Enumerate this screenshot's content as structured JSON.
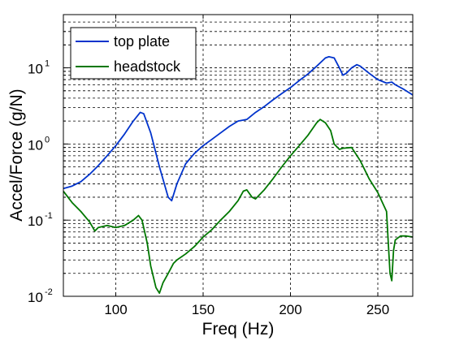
{
  "chart_data": {
    "type": "line",
    "title": "",
    "xlabel": "Freq (Hz)",
    "ylabel": "Accel/Force (g/N)",
    "xlim": [
      70,
      270
    ],
    "ylim": [
      0.01,
      50
    ],
    "yscale": "log",
    "grid": true,
    "legend_position": "top-left",
    "x_ticks": [
      100,
      150,
      200,
      250
    ],
    "x_tick_labels": [
      "100",
      "150",
      "200",
      "250"
    ],
    "y_ticks": [
      0.01,
      0.1,
      1,
      10
    ],
    "y_tick_labels": [
      {
        "base": "10",
        "exp": "-2"
      },
      {
        "base": "10",
        "exp": "-1"
      },
      {
        "base": "10",
        "exp": "0"
      },
      {
        "base": "10",
        "exp": "1"
      }
    ],
    "series": [
      {
        "name": "top plate",
        "color": "#0033cc",
        "x": [
          70,
          75,
          80,
          85,
          90,
          95,
          100,
          105,
          110,
          114,
          116,
          120,
          125,
          130,
          132,
          135,
          140,
          145,
          150,
          155,
          160,
          165,
          170,
          175,
          180,
          185,
          190,
          195,
          200,
          205,
          210,
          215,
          220,
          222,
          225,
          228,
          230,
          232,
          235,
          238,
          240,
          245,
          250,
          255,
          258,
          260,
          265,
          270
        ],
        "y": [
          0.26,
          0.28,
          0.32,
          0.4,
          0.52,
          0.7,
          0.95,
          1.35,
          2.0,
          2.6,
          2.5,
          1.4,
          0.5,
          0.2,
          0.18,
          0.3,
          0.55,
          0.75,
          0.95,
          1.15,
          1.4,
          1.7,
          2.0,
          2.1,
          2.6,
          3.1,
          3.8,
          4.6,
          5.5,
          6.8,
          8.3,
          10.5,
          13.5,
          14.0,
          13.5,
          10.0,
          8.0,
          8.5,
          10.0,
          11.0,
          10.5,
          8.5,
          7.0,
          6.3,
          6.5,
          6.0,
          5.2,
          4.4
        ]
      },
      {
        "name": "headstock",
        "color": "#007700",
        "x": [
          70,
          75,
          80,
          85,
          88,
          90,
          95,
          100,
          105,
          110,
          113,
          115,
          118,
          120,
          123,
          125,
          127,
          130,
          133,
          135,
          140,
          145,
          150,
          155,
          160,
          165,
          170,
          173,
          175,
          178,
          180,
          185,
          190,
          195,
          200,
          205,
          210,
          215,
          217,
          220,
          223,
          225,
          228,
          230,
          235,
          240,
          245,
          250,
          255,
          256,
          257,
          258,
          259,
          260,
          263,
          266,
          270
        ],
        "y": [
          0.24,
          0.17,
          0.13,
          0.095,
          0.072,
          0.08,
          0.085,
          0.08,
          0.085,
          0.1,
          0.115,
          0.1,
          0.05,
          0.025,
          0.013,
          0.011,
          0.015,
          0.02,
          0.027,
          0.03,
          0.036,
          0.045,
          0.06,
          0.075,
          0.1,
          0.13,
          0.18,
          0.24,
          0.25,
          0.2,
          0.19,
          0.25,
          0.35,
          0.5,
          0.7,
          0.95,
          1.3,
          1.9,
          2.1,
          1.9,
          1.5,
          1.0,
          0.85,
          0.88,
          0.9,
          0.6,
          0.35,
          0.23,
          0.13,
          0.05,
          0.02,
          0.016,
          0.04,
          0.055,
          0.062,
          0.062,
          0.06
        ]
      }
    ]
  }
}
